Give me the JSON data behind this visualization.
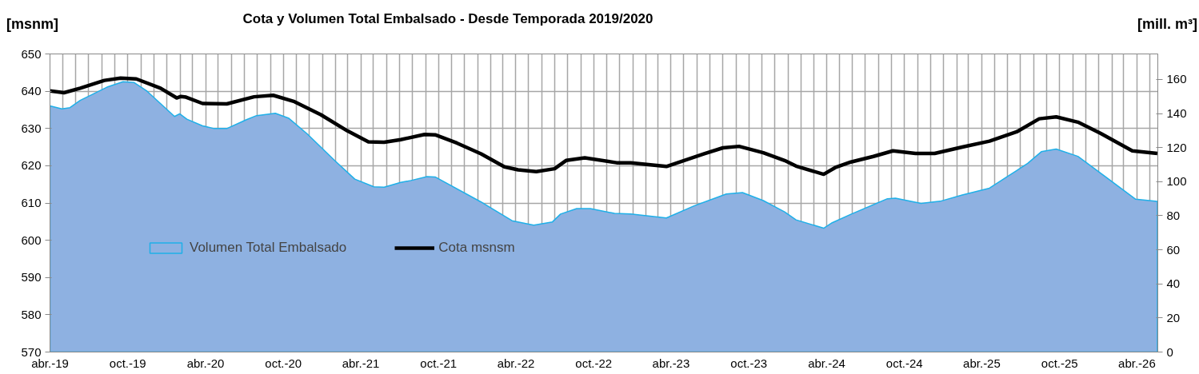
{
  "chart_data": {
    "type": "line",
    "title": "Cota y Volumen Total Embalsado - Desde Temporada 2019/2020",
    "ylabel": "[msnm]",
    "y2label": "[mill. m³]",
    "xlim": [
      "2019-04-01",
      "2026-05-20"
    ],
    "ylim": [
      570,
      650
    ],
    "yticks": [
      570,
      580,
      590,
      600,
      610,
      620,
      630,
      640,
      650
    ],
    "y2lim": [
      0,
      175
    ],
    "y2ticks": [
      0,
      20,
      40,
      60,
      80,
      100,
      120,
      140,
      160
    ],
    "xticks": [
      {
        "value": "2019-04-01",
        "label": "abr.-19"
      },
      {
        "value": "2019-05-01",
        "label": null
      },
      {
        "value": "2019-06-01",
        "label": null
      },
      {
        "value": "2019-07-01",
        "label": null
      },
      {
        "value": "2019-08-01",
        "label": null
      },
      {
        "value": "2019-09-01",
        "label": null
      },
      {
        "value": "2019-10-01",
        "label": "oct.-19"
      },
      {
        "value": "2019-11-01",
        "label": null
      },
      {
        "value": "2019-12-01",
        "label": null
      },
      {
        "value": "2020-01-01",
        "label": null
      },
      {
        "value": "2020-02-01",
        "label": null
      },
      {
        "value": "2020-03-01",
        "label": null
      },
      {
        "value": "2020-04-01",
        "label": "abr.-20"
      },
      {
        "value": "2020-05-01",
        "label": null
      },
      {
        "value": "2020-06-01",
        "label": null
      },
      {
        "value": "2020-07-01",
        "label": null
      },
      {
        "value": "2020-08-01",
        "label": null
      },
      {
        "value": "2020-09-01",
        "label": null
      },
      {
        "value": "2020-10-01",
        "label": "oct.-20"
      },
      {
        "value": "2020-11-01",
        "label": null
      },
      {
        "value": "2020-12-01",
        "label": null
      },
      {
        "value": "2021-01-01",
        "label": null
      },
      {
        "value": "2021-02-01",
        "label": null
      },
      {
        "value": "2021-03-01",
        "label": null
      },
      {
        "value": "2021-04-01",
        "label": "abr.-21"
      },
      {
        "value": "2021-05-01",
        "label": null
      },
      {
        "value": "2021-06-01",
        "label": null
      },
      {
        "value": "2021-07-01",
        "label": null
      },
      {
        "value": "2021-08-01",
        "label": null
      },
      {
        "value": "2021-09-01",
        "label": null
      },
      {
        "value": "2021-10-01",
        "label": "oct.-21"
      },
      {
        "value": "2021-11-01",
        "label": null
      },
      {
        "value": "2021-12-01",
        "label": null
      },
      {
        "value": "2022-01-01",
        "label": null
      },
      {
        "value": "2022-02-01",
        "label": null
      },
      {
        "value": "2022-03-01",
        "label": null
      },
      {
        "value": "2022-04-01",
        "label": "abr.-22"
      },
      {
        "value": "2022-05-01",
        "label": null
      },
      {
        "value": "2022-06-01",
        "label": null
      },
      {
        "value": "2022-07-01",
        "label": null
      },
      {
        "value": "2022-08-01",
        "label": null
      },
      {
        "value": "2022-09-01",
        "label": null
      },
      {
        "value": "2022-10-01",
        "label": "oct.-22"
      },
      {
        "value": "2022-11-01",
        "label": null
      },
      {
        "value": "2022-12-01",
        "label": null
      },
      {
        "value": "2023-01-01",
        "label": null
      },
      {
        "value": "2023-02-01",
        "label": null
      },
      {
        "value": "2023-03-01",
        "label": null
      },
      {
        "value": "2023-04-01",
        "label": "abr.-23"
      },
      {
        "value": "2023-05-01",
        "label": null
      },
      {
        "value": "2023-06-01",
        "label": null
      },
      {
        "value": "2023-07-01",
        "label": null
      },
      {
        "value": "2023-08-01",
        "label": null
      },
      {
        "value": "2023-09-01",
        "label": null
      },
      {
        "value": "2023-10-01",
        "label": "oct.-23"
      },
      {
        "value": "2023-11-01",
        "label": null
      },
      {
        "value": "2023-12-01",
        "label": null
      },
      {
        "value": "2024-01-01",
        "label": null
      },
      {
        "value": "2024-02-01",
        "label": null
      },
      {
        "value": "2024-03-01",
        "label": null
      },
      {
        "value": "2024-04-01",
        "label": "abr.-24"
      },
      {
        "value": "2024-05-01",
        "label": null
      },
      {
        "value": "2024-06-01",
        "label": null
      },
      {
        "value": "2024-07-01",
        "label": null
      },
      {
        "value": "2024-08-01",
        "label": null
      },
      {
        "value": "2024-09-01",
        "label": null
      },
      {
        "value": "2024-10-01",
        "label": "oct.-24"
      },
      {
        "value": "2024-11-01",
        "label": null
      },
      {
        "value": "2024-12-01",
        "label": null
      },
      {
        "value": "2025-01-01",
        "label": null
      },
      {
        "value": "2025-02-01",
        "label": null
      },
      {
        "value": "2025-03-01",
        "label": null
      },
      {
        "value": "2025-04-01",
        "label": "abr.-25"
      },
      {
        "value": "2025-05-01",
        "label": null
      },
      {
        "value": "2025-06-01",
        "label": null
      },
      {
        "value": "2025-07-01",
        "label": null
      },
      {
        "value": "2025-08-01",
        "label": null
      },
      {
        "value": "2025-09-01",
        "label": null
      },
      {
        "value": "2025-10-01",
        "label": "oct.-25"
      },
      {
        "value": "2025-11-01",
        "label": null
      },
      {
        "value": "2025-12-01",
        "label": null
      },
      {
        "value": "2026-01-01",
        "label": null
      },
      {
        "value": "2026-02-01",
        "label": null
      },
      {
        "value": "2026-03-01",
        "label": null
      },
      {
        "value": "2026-04-01",
        "label": "abr.-26"
      },
      {
        "value": "2026-05-01",
        "label": null
      }
    ],
    "grid": true,
    "legend": "bottom left",
    "series": [
      {
        "name": "Volumen Total Embalsado",
        "type": "area",
        "axis": "y2",
        "color": "#8eb1e1",
        "x": [
          "2019-04-01",
          "2019-04-29",
          "2019-05-18",
          "2019-06-11",
          "2019-08-13",
          "2019-09-20",
          "2019-10-16",
          "2019-11-15",
          "2020-01-19",
          "2020-01-31",
          "2020-02-17",
          "2020-03-25",
          "2020-04-21",
          "2020-05-21",
          "2020-07-05",
          "2020-07-30",
          "2020-09-12",
          "2020-10-14",
          "2020-11-26",
          "2021-01-30",
          "2021-03-18",
          "2021-05-02",
          "2021-05-26",
          "2021-07-04",
          "2021-07-28",
          "2021-09-04",
          "2021-09-23",
          "2022-01-09",
          "2022-03-23",
          "2022-05-13",
          "2022-06-26",
          "2022-07-15",
          "2022-08-22",
          "2022-09-23",
          "2022-11-19",
          "2022-12-27",
          "2023-03-21",
          "2023-05-24",
          "2023-08-09",
          "2023-09-16",
          "2023-11-04",
          "2023-12-24",
          "2024-01-20",
          "2024-03-25",
          "2024-04-14",
          "2024-05-28",
          "2024-08-22",
          "2024-09-10",
          "2024-11-09",
          "2024-12-24",
          "2025-02-14",
          "2025-04-19",
          "2025-06-09",
          "2025-07-18",
          "2025-08-19",
          "2025-09-23",
          "2025-11-13",
          "2026-01-18",
          "2026-03-29",
          "2026-05-19"
        ],
        "values": [
          144.5,
          142.7,
          143.5,
          147.7,
          155.5,
          158.7,
          158.2,
          153.2,
          138.3,
          139.9,
          136.7,
          132.8,
          131.2,
          131.2,
          136.3,
          138.8,
          140.2,
          137.2,
          128.1,
          112.4,
          101.5,
          97.0,
          96.8,
          99.6,
          100.7,
          103.0,
          102.8,
          88.1,
          77.1,
          74.5,
          76.4,
          81.0,
          84.2,
          84.2,
          81.4,
          81.0,
          78.7,
          85.7,
          92.8,
          93.6,
          88.9,
          82.3,
          77.6,
          72.7,
          75.9,
          80.9,
          90.0,
          90.3,
          87.3,
          88.5,
          92.2,
          96.2,
          104.4,
          110.8,
          117.6,
          119.2,
          114.9,
          102.7,
          89.7,
          88.4
        ]
      },
      {
        "name": "Cota msnsm",
        "color": "#000000",
        "x": [
          "2019-04-01",
          "2019-05-04",
          "2019-06-11",
          "2019-08-07",
          "2019-09-14",
          "2019-10-21",
          "2019-12-17",
          "2020-01-24",
          "2020-02-03",
          "2020-02-15",
          "2020-03-25",
          "2020-05-21",
          "2020-07-24",
          "2020-09-07",
          "2020-10-27",
          "2020-12-28",
          "2021-02-28",
          "2021-04-19",
          "2021-05-26",
          "2021-07-04",
          "2021-08-29",
          "2021-09-23",
          "2021-11-13",
          "2022-01-09",
          "2022-03-05",
          "2022-04-06",
          "2022-05-19",
          "2022-07-01",
          "2022-07-28",
          "2022-09-10",
          "2022-11-24",
          "2022-12-27",
          "2023-03-21",
          "2023-06-18",
          "2023-08-01",
          "2023-09-08",
          "2023-11-04",
          "2023-12-24",
          "2024-01-20",
          "2024-03-25",
          "2024-04-21",
          "2024-05-28",
          "2024-07-20",
          "2024-09-04",
          "2024-10-27",
          "2024-12-11",
          "2025-02-14",
          "2025-04-19",
          "2025-06-22",
          "2025-08-14",
          "2025-09-23",
          "2025-11-13",
          "2026-01-05",
          "2026-03-21",
          "2026-05-19"
        ],
        "values": [
          640.1,
          639.6,
          640.8,
          642.9,
          643.5,
          643.3,
          640.8,
          638.2,
          638.6,
          638.4,
          636.7,
          636.6,
          638.5,
          638.9,
          637.2,
          633.7,
          629.4,
          626.4,
          626.3,
          627.0,
          628.4,
          628.3,
          626.1,
          623.2,
          619.7,
          618.9,
          618.4,
          619.2,
          621.4,
          622.1,
          620.8,
          620.8,
          619.8,
          623.2,
          624.8,
          625.2,
          623.5,
          621.4,
          619.9,
          617.7,
          619.5,
          621.0,
          622.5,
          624.0,
          623.3,
          623.3,
          625.0,
          626.6,
          629.1,
          632.6,
          633.1,
          631.7,
          628.7,
          624.0,
          623.3
        ]
      }
    ]
  }
}
